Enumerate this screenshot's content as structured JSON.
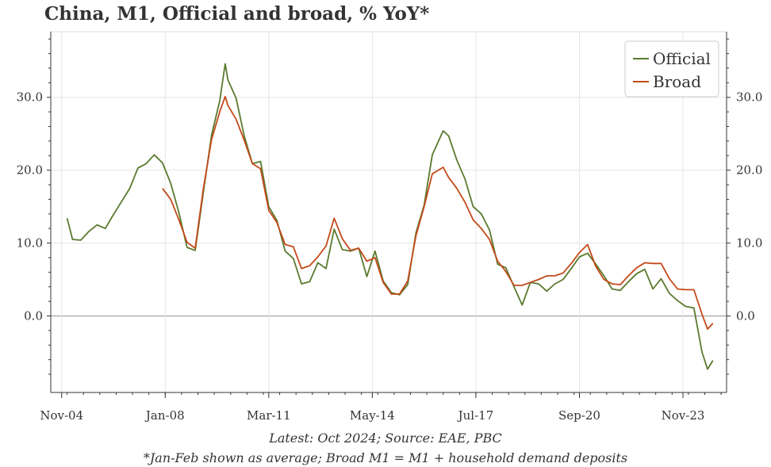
{
  "chart_data": {
    "type": "line",
    "title": "China, M1, Official and broad, % YoY*",
    "x_tick_labels": [
      "Nov-04",
      "Jan-08",
      "Mar-11",
      "May-14",
      "Jul-17",
      "Sep-20",
      "Nov-23"
    ],
    "y_ticks": [
      0.0,
      10.0,
      20.0,
      30.0
    ],
    "y_tick_labels": [
      "0.0",
      "10.0",
      "20.0",
      "30.0"
    ],
    "ylim": [
      -10.5,
      39
    ],
    "xlim": [
      "2004-07",
      "2025-03"
    ],
    "grid": true,
    "legend_position": "top-right",
    "colors": {
      "official": "#5a7a2e",
      "broad": "#c44a1a",
      "zero_line": "#b0b0b0"
    },
    "series": [
      {
        "name": "Official",
        "x": [
          "2005-01",
          "2005-03",
          "2005-06",
          "2005-09",
          "2005-12",
          "2006-03",
          "2006-06",
          "2006-09",
          "2006-12",
          "2007-03",
          "2007-06",
          "2007-09",
          "2007-12",
          "2008-03",
          "2008-06",
          "2008-09",
          "2008-12",
          "2009-03",
          "2009-06",
          "2009-09",
          "2009-11",
          "2009-12",
          "2010-03",
          "2010-06",
          "2010-09",
          "2010-12",
          "2011-03",
          "2011-06",
          "2011-09",
          "2011-12",
          "2012-03",
          "2012-06",
          "2012-09",
          "2012-12",
          "2013-03",
          "2013-06",
          "2013-09",
          "2013-12",
          "2014-03",
          "2014-06",
          "2014-09",
          "2014-12",
          "2015-03",
          "2015-06",
          "2015-09",
          "2015-12",
          "2016-03",
          "2016-07",
          "2016-09",
          "2016-12",
          "2017-03",
          "2017-06",
          "2017-09",
          "2017-12",
          "2018-03",
          "2018-06",
          "2018-09",
          "2018-12",
          "2019-03",
          "2019-06",
          "2019-09",
          "2019-12",
          "2020-03",
          "2020-06",
          "2020-09",
          "2020-12",
          "2021-03",
          "2021-06",
          "2021-09",
          "2021-12",
          "2022-03",
          "2022-06",
          "2022-09",
          "2022-12",
          "2023-03",
          "2023-06",
          "2023-09",
          "2023-12",
          "2024-03",
          "2024-06",
          "2024-08",
          "2024-10"
        ],
        "values": [
          13.4,
          10.5,
          10.4,
          11.6,
          12.5,
          12.0,
          13.9,
          15.7,
          17.5,
          20.3,
          20.9,
          22.1,
          21.0,
          18.2,
          14.2,
          9.4,
          9.0,
          17.0,
          24.8,
          29.5,
          34.6,
          32.4,
          29.9,
          24.7,
          20.9,
          21.2,
          15.0,
          13.1,
          8.9,
          7.9,
          4.4,
          4.7,
          7.3,
          6.5,
          11.9,
          9.1,
          8.9,
          9.3,
          5.4,
          8.9,
          4.8,
          3.2,
          2.9,
          4.3,
          11.4,
          15.2,
          22.1,
          25.4,
          24.7,
          21.4,
          18.8,
          15.0,
          14.0,
          11.8,
          7.1,
          6.6,
          4.0,
          1.5,
          4.6,
          4.4,
          3.4,
          4.4,
          5.0,
          6.5,
          8.1,
          8.6,
          7.1,
          5.5,
          3.7,
          3.5,
          4.7,
          5.8,
          6.4,
          3.7,
          5.1,
          3.1,
          2.1,
          1.3,
          1.1,
          -5.0,
          -7.3,
          -6.1
        ]
      },
      {
        "name": "Broad",
        "x": [
          "2007-12",
          "2008-03",
          "2008-06",
          "2008-09",
          "2008-12",
          "2009-03",
          "2009-06",
          "2009-09",
          "2009-11",
          "2009-12",
          "2010-03",
          "2010-06",
          "2010-09",
          "2010-12",
          "2011-03",
          "2011-06",
          "2011-09",
          "2011-12",
          "2012-03",
          "2012-06",
          "2012-09",
          "2012-12",
          "2013-03",
          "2013-06",
          "2013-09",
          "2013-12",
          "2014-03",
          "2014-06",
          "2014-09",
          "2014-12",
          "2015-03",
          "2015-06",
          "2015-09",
          "2015-12",
          "2016-03",
          "2016-07",
          "2016-09",
          "2016-12",
          "2017-03",
          "2017-06",
          "2017-09",
          "2017-12",
          "2018-03",
          "2018-06",
          "2018-09",
          "2018-12",
          "2019-03",
          "2019-06",
          "2019-09",
          "2019-12",
          "2020-03",
          "2020-06",
          "2020-09",
          "2020-12",
          "2021-03",
          "2021-06",
          "2021-09",
          "2021-12",
          "2022-03",
          "2022-06",
          "2022-09",
          "2022-12",
          "2023-03",
          "2023-06",
          "2023-09",
          "2023-12",
          "2024-03",
          "2024-06",
          "2024-08",
          "2024-10"
        ],
        "values": [
          17.5,
          16.0,
          13.2,
          10.1,
          9.3,
          17.5,
          24.2,
          28.0,
          30.1,
          28.9,
          27.0,
          24.1,
          20.9,
          20.2,
          14.5,
          12.8,
          9.8,
          9.5,
          6.5,
          6.9,
          8.1,
          9.6,
          13.4,
          10.6,
          9.0,
          9.3,
          7.5,
          8.0,
          4.6,
          3.0,
          3.0,
          4.8,
          11.0,
          15.0,
          19.5,
          20.4,
          19.0,
          17.5,
          15.6,
          13.2,
          12.0,
          10.5,
          7.5,
          6.1,
          4.2,
          4.2,
          4.6,
          5.0,
          5.5,
          5.5,
          5.9,
          7.2,
          8.7,
          9.8,
          6.8,
          5.0,
          4.4,
          4.3,
          5.5,
          6.6,
          7.3,
          7.2,
          7.2,
          5.1,
          3.7,
          3.6,
          3.6,
          0.2,
          -1.8,
          -1.0
        ]
      }
    ],
    "legend": [
      "Official",
      "Broad"
    ],
    "notes": [
      "Latest: Oct 2024; Source: EAE, PBC",
      "*Jan-Feb shown as average; Broad M1 = M1 + household demand deposits"
    ]
  }
}
